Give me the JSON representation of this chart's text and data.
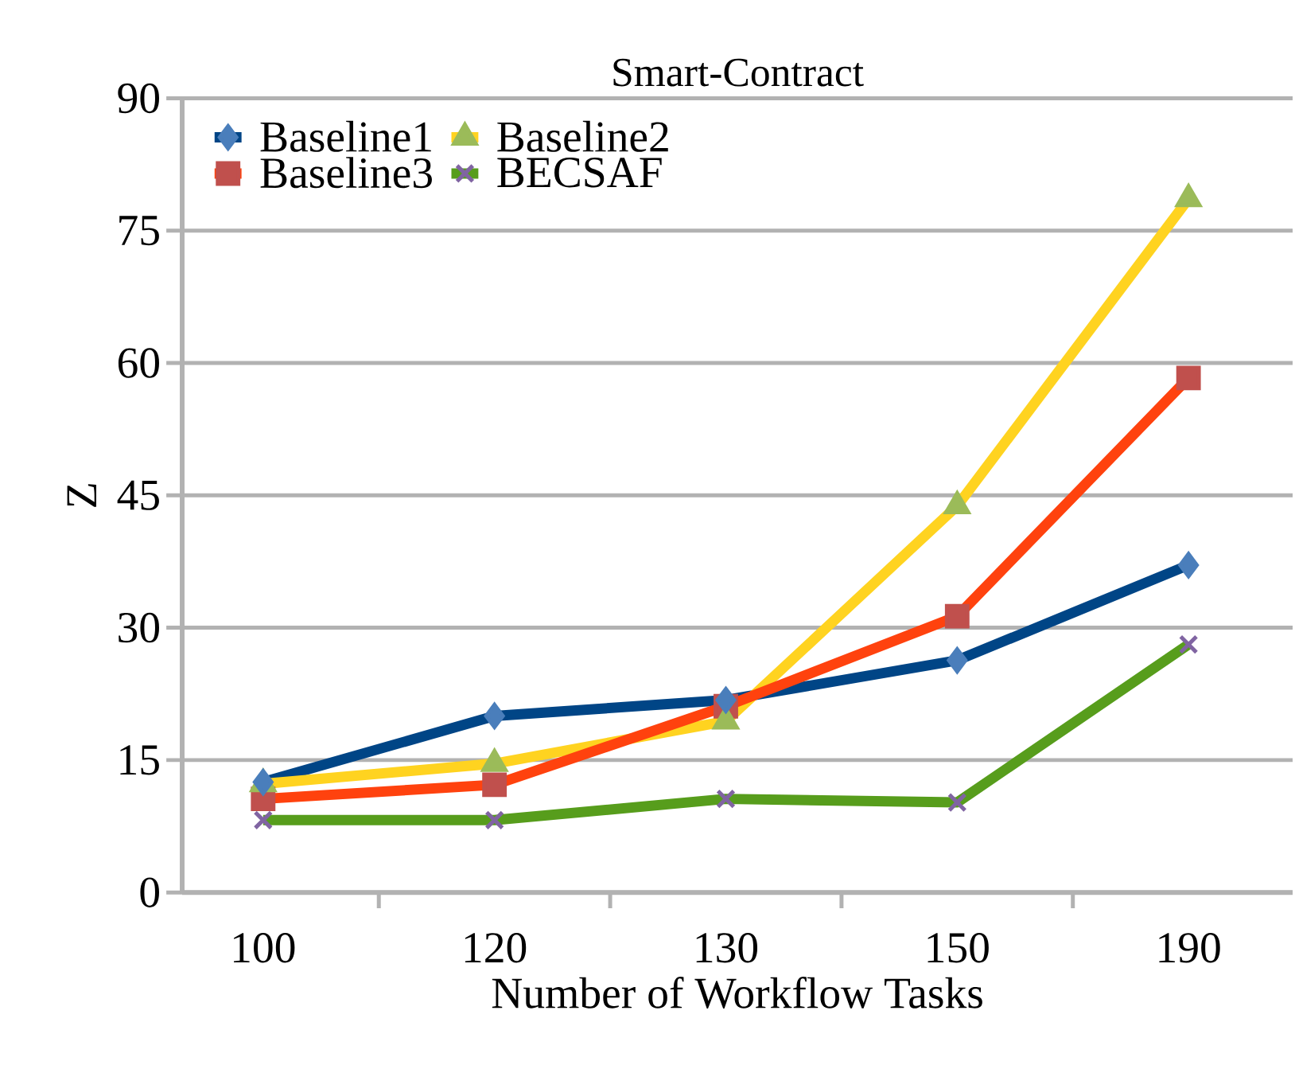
{
  "chart_data": {
    "type": "line",
    "title": "Smart-Contract",
    "xlabel": "Number of Workflow Tasks",
    "ylabel": "Z",
    "categories": [
      "100",
      "120",
      "130",
      "150",
      "190"
    ],
    "series": [
      {
        "name": "Baseline1",
        "color": "#004586",
        "colors": [
          "#4a7ebb",
          "#4a7ebb",
          "#4a7ebb",
          "#4a7ebb",
          "#4a7ebb"
        ],
        "marker": "diamond",
        "values": [
          12.5,
          20.0,
          21.8,
          26.3,
          37.1
        ]
      },
      {
        "name": "Baseline2",
        "color": "#ffd320",
        "colors": [
          "#9bbb59",
          "#9bbb59",
          "#9bbb59",
          "#9bbb59",
          "#9bbb59"
        ],
        "marker": "triangle",
        "values": [
          12.3,
          14.6,
          19.4,
          43.8,
          78.6
        ]
      },
      {
        "name": "Baseline3",
        "color": "#ff420e",
        "colors": [
          "#c0504d",
          "#c0504d",
          "#c0504d",
          "#c0504d",
          "#c0504d"
        ],
        "marker": "square",
        "values": [
          10.6,
          12.2,
          21.1,
          31.3,
          58.3
        ]
      },
      {
        "name": "BECSAF",
        "color": "#579d1c",
        "colors": [
          "#8064a2",
          "#8064a2",
          "#8064a2",
          "#8064a2",
          "#8064a2"
        ],
        "marker": "cross",
        "values": [
          8.2,
          8.2,
          10.6,
          10.2,
          28.1
        ]
      }
    ],
    "ylim": [
      0,
      90
    ],
    "yticks": [
      0,
      15,
      30,
      45,
      60,
      75,
      90
    ],
    "grid": "y",
    "legend": "top left",
    "line_style": "solid"
  }
}
